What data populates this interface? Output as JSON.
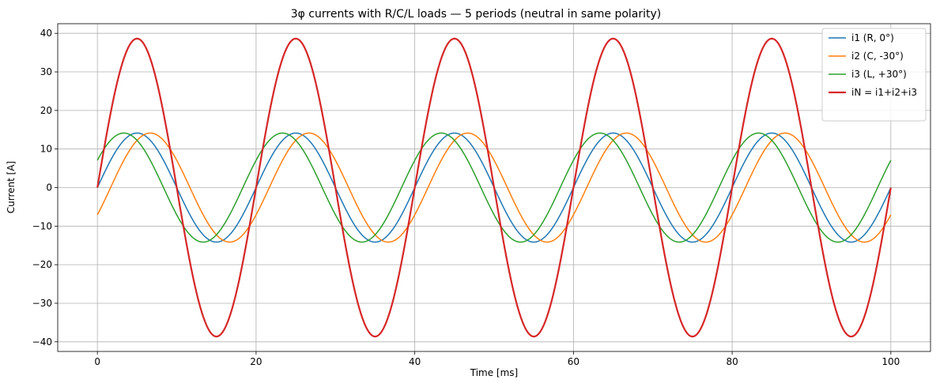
{
  "chart_data": {
    "type": "line",
    "title": "3φ currents with R/C/L loads — 5 periods (neutral in same polarity)",
    "xlabel": "Time [ms]",
    "ylabel": "Current [A]",
    "xlim": [
      -5,
      105
    ],
    "ylim": [
      -42.5,
      42.5
    ],
    "xticks": [
      0,
      20,
      40,
      60,
      80,
      100
    ],
    "yticks": [
      -40,
      -30,
      -20,
      -10,
      0,
      10,
      20,
      30,
      40
    ],
    "xtick_labels": [
      "0",
      "20",
      "40",
      "60",
      "80",
      "100"
    ],
    "ytick_labels": [
      "−40",
      "−30",
      "−20",
      "−10",
      "0",
      "10",
      "20",
      "30",
      "40"
    ],
    "grid": true,
    "legend_position": "top-right",
    "frequency_hz": 50,
    "duration_ms": 100,
    "series": [
      {
        "name": "i1 (R, 0°)",
        "color": "#1f77b4",
        "amplitude": 14.14,
        "phase_deg": 0,
        "linewidth": 1.5
      },
      {
        "name": "i2 (C, -30°)",
        "color": "#ff7f0e",
        "amplitude": 14.14,
        "phase_deg": -30,
        "linewidth": 1.5
      },
      {
        "name": "i3 (L, +30°)",
        "color": "#2ca02c",
        "amplitude": 14.14,
        "phase_deg": 30,
        "linewidth": 1.5
      },
      {
        "name": "iN = i1+i2+i3",
        "color": "#d62728",
        "amplitude": 38.63,
        "phase_deg": 0,
        "linewidth": 2.2
      }
    ]
  }
}
